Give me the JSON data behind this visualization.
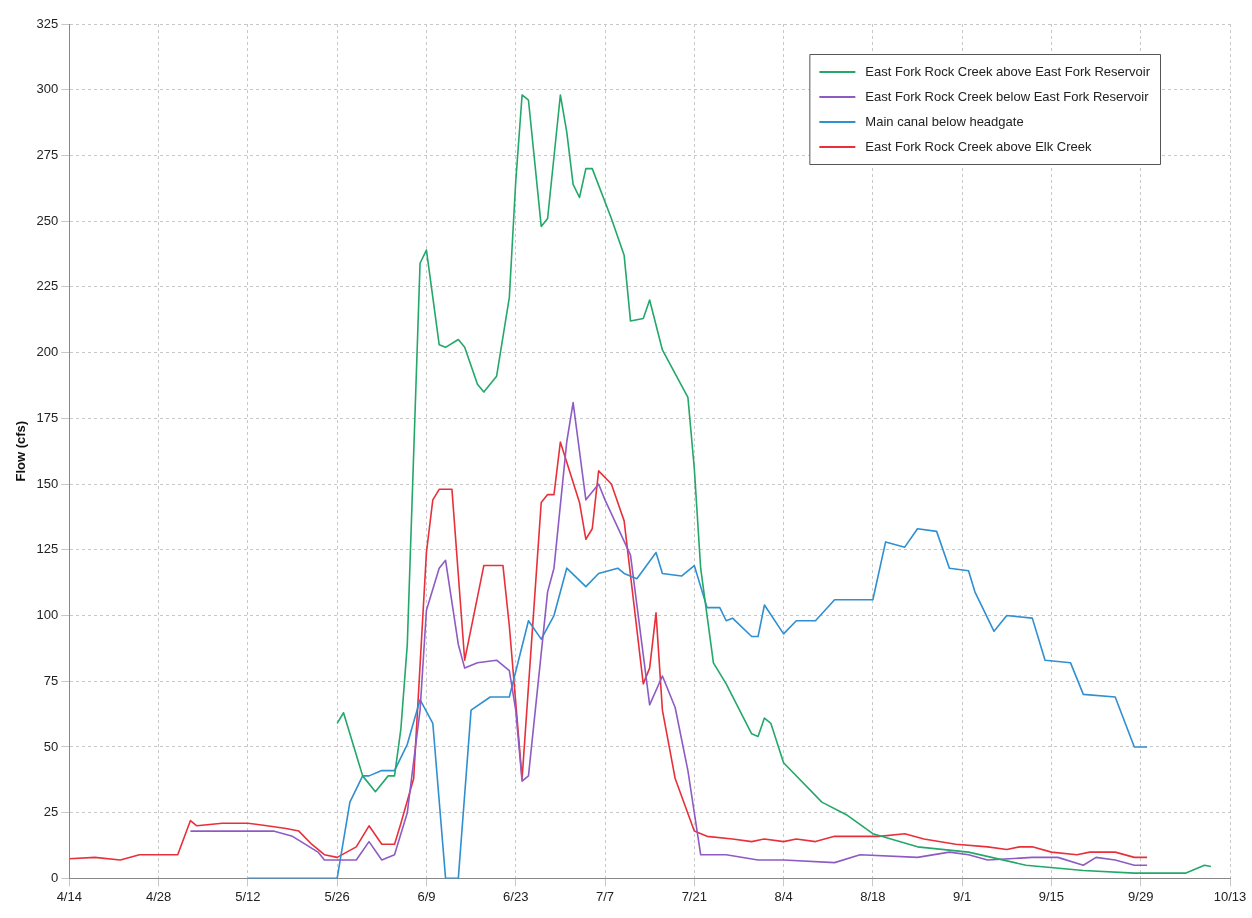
{
  "chart_data": {
    "type": "line",
    "ylabel": "Flow (cfs)",
    "xlim": [
      "--04-14",
      "--10-13"
    ],
    "xticks": [
      {
        "value": "--04-14",
        "label": "4/14"
      },
      {
        "value": "--04-28",
        "label": "4/28"
      },
      {
        "value": "--05-12",
        "label": "5/12"
      },
      {
        "value": "--05-26",
        "label": "5/26"
      },
      {
        "value": "--06-09",
        "label": "6/9"
      },
      {
        "value": "--06-23",
        "label": "6/23"
      },
      {
        "value": "--07-07",
        "label": "7/7"
      },
      {
        "value": "--07-21",
        "label": "7/21"
      },
      {
        "value": "--08-04",
        "label": "8/4"
      },
      {
        "value": "--08-18",
        "label": "8/18"
      },
      {
        "value": "--09-01",
        "label": "9/1"
      },
      {
        "value": "--09-15",
        "label": "9/15"
      },
      {
        "value": "--09-29",
        "label": "9/29"
      },
      {
        "value": "--10-13",
        "label": "10/13"
      }
    ],
    "ylim": [
      0,
      325
    ],
    "yticks": [
      0,
      25,
      50,
      75,
      100,
      125,
      150,
      175,
      200,
      225,
      250,
      275,
      300,
      325
    ],
    "grid": true,
    "legend": "top right",
    "marker": "none",
    "line_style": "solid",
    "series": [
      {
        "name": "East Fork Rock Creek above East Fork Reservoir",
        "color": "#23a86a",
        "x": [
          "--05-26",
          "--05-27",
          "--05-30",
          "--06-01",
          "--06-03",
          "--06-04",
          "--06-05",
          "--06-06",
          "--06-08",
          "--06-09",
          "--06-11",
          "--06-12",
          "--06-14",
          "--06-15",
          "--06-17",
          "--06-18",
          "--06-20",
          "--06-22",
          "--06-23",
          "--06-24",
          "--06-25",
          "--06-27",
          "--06-28",
          "--06-30",
          "--07-01",
          "--07-02",
          "--07-03",
          "--07-04",
          "--07-05",
          "--07-08",
          "--07-10",
          "--07-11",
          "--07-13",
          "--07-14",
          "--07-16",
          "--07-20",
          "--07-21",
          "--07-22",
          "--07-24",
          "--07-26",
          "--07-30",
          "--07-31",
          "--08-01",
          "--08-02",
          "--08-04",
          "--08-10",
          "--08-14",
          "--08-18",
          "--08-25",
          "--09-02",
          "--09-11",
          "--09-20",
          "--09-28",
          "--10-06",
          "--10-09",
          "--10-10"
        ],
        "values": [
          59,
          63,
          39,
          33,
          39,
          39,
          57,
          89,
          234,
          239,
          203,
          202,
          205,
          202,
          188,
          185,
          191,
          221,
          265,
          298,
          296,
          248,
          251,
          298,
          284,
          264,
          259,
          270,
          270,
          251,
          237,
          212,
          213,
          220,
          201,
          183,
          156,
          118,
          82,
          74,
          55,
          54,
          61,
          59,
          44,
          29,
          24,
          17,
          12,
          10,
          5,
          3,
          2,
          2,
          5,
          4.5
        ]
      },
      {
        "name": "East Fork Rock Creek below East Fork Reservoir",
        "color": "#8e5bc4",
        "x": [
          "--05-03",
          "--05-16",
          "--05-19",
          "--05-23",
          "--05-24",
          "--05-26",
          "--05-29",
          "--05-31",
          "--06-02",
          "--06-04",
          "--06-06",
          "--06-08",
          "--06-09",
          "--06-11",
          "--06-12",
          "--06-14",
          "--06-15",
          "--06-17",
          "--06-20",
          "--06-22",
          "--06-23",
          "--06-24",
          "--06-25",
          "--06-28",
          "--06-29",
          "--07-01",
          "--07-02",
          "--07-04",
          "--07-06",
          "--07-07",
          "--07-11",
          "--07-14",
          "--07-16",
          "--07-18",
          "--07-20",
          "--07-22",
          "--07-26",
          "--07-31",
          "--08-04",
          "--08-12",
          "--08-16",
          "--08-25",
          "--08-30",
          "--09-02",
          "--09-05",
          "--09-12",
          "--09-16",
          "--09-20",
          "--09-22",
          "--09-25",
          "--09-28",
          "--09-30"
        ],
        "values": [
          18,
          18,
          16,
          10,
          7,
          7,
          7,
          14,
          7,
          9,
          25,
          64,
          102,
          118,
          121,
          89,
          80,
          82,
          83,
          79,
          64,
          37,
          39,
          109,
          118,
          166,
          181,
          144,
          150,
          144,
          123,
          66,
          77,
          65,
          41,
          9,
          9,
          7,
          7,
          6,
          9,
          8,
          10,
          9,
          7,
          8,
          8,
          5,
          8,
          7,
          5,
          5
        ]
      },
      {
        "name": "Main canal below headgate",
        "color": "#2f8fd0",
        "x": [
          "--05-12",
          "--05-26",
          "--05-28",
          "--05-30",
          "--05-31",
          "--06-02",
          "--06-04",
          "--06-06",
          "--06-08",
          "--06-10",
          "--06-12",
          "--06-14",
          "--06-16",
          "--06-19",
          "--06-22",
          "--06-25",
          "--06-27",
          "--06-29",
          "--07-01",
          "--07-04",
          "--07-06",
          "--07-09",
          "--07-10",
          "--07-12",
          "--07-15",
          "--07-16",
          "--07-19",
          "--07-21",
          "--07-23",
          "--07-25",
          "--07-26",
          "--07-27",
          "--07-30",
          "--07-31",
          "--08-01",
          "--08-04",
          "--08-06",
          "--08-09",
          "--08-12",
          "--08-18",
          "--08-20",
          "--08-23",
          "--08-25",
          "--08-28",
          "--08-30",
          "--09-02",
          "--09-03",
          "--09-06",
          "--09-08",
          "--09-12",
          "--09-14",
          "--09-18",
          "--09-20",
          "--09-25",
          "--09-28",
          "--09-30"
        ],
        "values": [
          0,
          0,
          29,
          39,
          39,
          41,
          41,
          51,
          68,
          59,
          0,
          0,
          64,
          69,
          69,
          98,
          91,
          100,
          118,
          111,
          116,
          118,
          116,
          114,
          124,
          116,
          115,
          119,
          103,
          103,
          98,
          99,
          92,
          92,
          104,
          93,
          98,
          98,
          106,
          106,
          128,
          126,
          133,
          132,
          118,
          117,
          109,
          94,
          100,
          99,
          83,
          82,
          70,
          69,
          50,
          50
        ]
      },
      {
        "name": "East Fork Rock Creek above Elk Creek",
        "color": "#e8303a",
        "x": [
          "--04-14",
          "--04-18",
          "--04-22",
          "--04-25",
          "--04-28",
          "--05-01",
          "--05-03",
          "--05-04",
          "--05-08",
          "--05-12",
          "--05-15",
          "--05-18",
          "--05-20",
          "--05-22",
          "--05-24",
          "--05-26",
          "--05-29",
          "--05-31",
          "--06-02",
          "--06-04",
          "--06-05",
          "--06-07",
          "--06-09",
          "--06-10",
          "--06-11",
          "--06-13",
          "--06-15",
          "--06-18",
          "--06-21",
          "--06-22",
          "--06-24",
          "--06-27",
          "--06-28",
          "--06-29",
          "--06-30",
          "--07-03",
          "--07-04",
          "--07-05",
          "--07-06",
          "--07-08",
          "--07-10",
          "--07-13",
          "--07-14",
          "--07-15",
          "--07-16",
          "--07-18",
          "--07-21",
          "--07-23",
          "--07-27",
          "--07-30",
          "--08-01",
          "--08-04",
          "--08-06",
          "--08-09",
          "--08-12",
          "--08-19",
          "--08-23",
          "--08-26",
          "--08-31",
          "--09-05",
          "--09-08",
          "--09-10",
          "--09-12",
          "--09-15",
          "--09-19",
          "--09-21",
          "--09-25",
          "--09-28",
          "--09-30"
        ],
        "values": [
          7.5,
          8,
          7,
          9,
          9,
          9,
          22,
          20,
          21,
          21,
          20,
          19,
          18,
          13,
          9,
          8,
          12,
          20,
          13,
          13,
          21,
          38,
          124,
          144,
          148,
          148,
          83,
          119,
          119,
          96,
          38,
          143,
          146,
          146,
          166,
          143,
          129,
          133,
          155,
          150,
          136,
          74,
          80,
          101,
          64,
          38,
          18,
          16,
          15,
          14,
          15,
          14,
          15,
          14,
          16,
          16,
          17,
          15,
          13,
          12,
          11,
          12,
          12,
          10,
          9,
          10,
          10,
          8,
          8
        ]
      }
    ]
  }
}
